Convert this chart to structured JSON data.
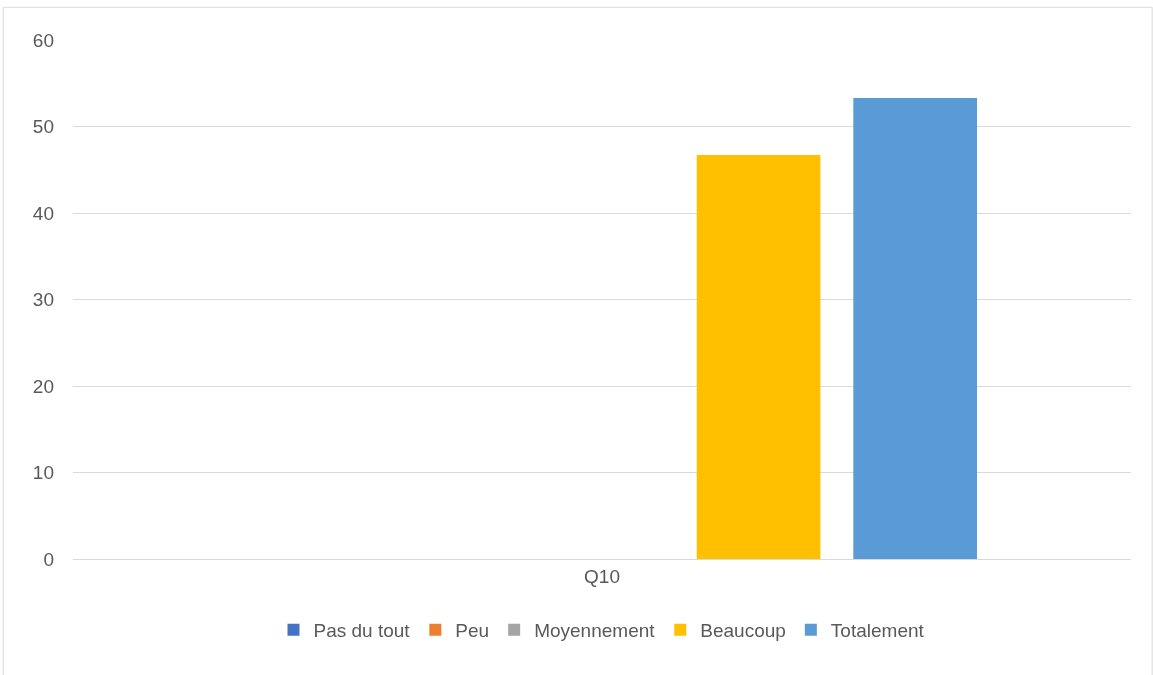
{
  "chart_data": {
    "type": "bar",
    "categories": [
      "Q10"
    ],
    "series": [
      {
        "name": "Pas du tout",
        "color": "#4472c4",
        "values": [
          0
        ]
      },
      {
        "name": "Peu",
        "color": "#ed7d31",
        "values": [
          0
        ]
      },
      {
        "name": "Moyennement",
        "color": "#a5a5a5",
        "values": [
          0
        ]
      },
      {
        "name": "Beaucoup",
        "color": "#ffc000",
        "values": [
          46.7
        ]
      },
      {
        "name": "Totalement",
        "color": "#5b9bd5",
        "values": [
          53.3
        ]
      }
    ],
    "ylim": [
      0,
      60
    ],
    "yticks": [
      0,
      10,
      20,
      30,
      40,
      50,
      60
    ],
    "grid": "y",
    "legend": "bottom"
  }
}
